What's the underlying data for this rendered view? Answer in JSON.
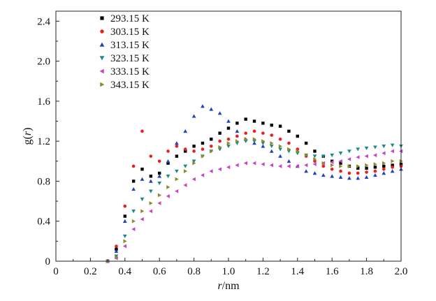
{
  "chart_data": {
    "type": "scatter",
    "title": "",
    "xlabel_italic": "r",
    "xlabel_unit": "/nm",
    "ylabel_main": "g(",
    "ylabel_var": "r",
    "ylabel_end": ")",
    "xlim": [
      0,
      2.0
    ],
    "ylim": [
      0,
      2.5
    ],
    "x_ticks": [
      0,
      0.2,
      0.4,
      0.6,
      0.8,
      1.0,
      1.2,
      1.4,
      1.6,
      1.8,
      2.0
    ],
    "x_tick_labels": [
      "0",
      "0.2",
      "0.4",
      "0.6",
      "0.8",
      "1.0",
      "1.2",
      "1.4",
      "1.6",
      "1.8",
      "2.0"
    ],
    "y_ticks": [
      0,
      0.4,
      0.8,
      1.2,
      1.6,
      2.0,
      2.4
    ],
    "y_tick_labels": [
      "0",
      "0.4",
      "0.8",
      "1.2",
      "1.6",
      "2.0",
      "2.4"
    ],
    "grid": false,
    "legend_position": "top-left",
    "series": [
      {
        "name": "293.15 K",
        "marker": "square",
        "color": "#000000",
        "x": [
          0.3,
          0.35,
          0.4,
          0.45,
          0.5,
          0.55,
          0.6,
          0.65,
          0.7,
          0.75,
          0.8,
          0.85,
          0.9,
          0.95,
          1.0,
          1.05,
          1.1,
          1.15,
          1.2,
          1.25,
          1.3,
          1.35,
          1.4,
          1.45,
          1.5,
          1.55,
          1.6,
          1.65,
          1.7,
          1.75,
          1.8,
          1.85,
          1.9,
          1.95,
          2.0
        ],
        "y": [
          0.0,
          0.12,
          0.45,
          0.8,
          0.92,
          0.85,
          0.88,
          0.98,
          1.05,
          1.1,
          1.15,
          1.18,
          1.22,
          1.28,
          1.33,
          1.38,
          1.42,
          1.4,
          1.38,
          1.36,
          1.35,
          1.3,
          1.25,
          1.18,
          1.1,
          1.05,
          1.0,
          0.98,
          0.95,
          0.93,
          0.93,
          0.94,
          0.95,
          0.96,
          0.97
        ]
      },
      {
        "name": "303.15 K",
        "marker": "circle",
        "color": "#e8201e",
        "x": [
          0.3,
          0.35,
          0.4,
          0.45,
          0.5,
          0.55,
          0.6,
          0.65,
          0.7,
          0.75,
          0.8,
          0.85,
          0.9,
          0.95,
          1.0,
          1.05,
          1.1,
          1.15,
          1.2,
          1.25,
          1.3,
          1.35,
          1.4,
          1.45,
          1.5,
          1.55,
          1.6,
          1.65,
          1.7,
          1.75,
          1.8,
          1.85,
          1.9,
          1.95,
          2.0
        ],
        "y": [
          0.0,
          0.15,
          0.55,
          0.95,
          1.3,
          1.05,
          1.0,
          1.1,
          1.15,
          1.12,
          1.1,
          1.12,
          1.15,
          1.2,
          1.22,
          1.25,
          1.28,
          1.3,
          1.28,
          1.26,
          1.22,
          1.18,
          1.12,
          1.05,
          1.0,
          0.95,
          0.92,
          0.9,
          0.88,
          0.88,
          0.89,
          0.9,
          0.92,
          0.94,
          0.95
        ]
      },
      {
        "name": "313.15 K",
        "marker": "triangle-up",
        "color": "#1f43b8",
        "x": [
          0.3,
          0.35,
          0.4,
          0.45,
          0.5,
          0.55,
          0.6,
          0.65,
          0.7,
          0.75,
          0.8,
          0.85,
          0.9,
          0.95,
          1.0,
          1.05,
          1.1,
          1.15,
          1.2,
          1.25,
          1.3,
          1.35,
          1.4,
          1.45,
          1.5,
          1.55,
          1.6,
          1.65,
          1.7,
          1.75,
          1.8,
          1.85,
          1.9,
          1.95,
          2.0
        ],
        "y": [
          0.0,
          0.1,
          0.4,
          0.72,
          0.82,
          0.8,
          0.85,
          1.0,
          1.18,
          1.3,
          1.45,
          1.55,
          1.52,
          1.48,
          1.4,
          1.3,
          1.22,
          1.18,
          1.15,
          1.1,
          1.05,
          1.0,
          0.95,
          0.9,
          0.88,
          0.86,
          0.85,
          0.84,
          0.83,
          0.83,
          0.84,
          0.86,
          0.88,
          0.9,
          0.92
        ]
      },
      {
        "name": "323.15 K",
        "marker": "triangle-down",
        "color": "#1b8a86",
        "x": [
          0.3,
          0.35,
          0.4,
          0.45,
          0.5,
          0.55,
          0.6,
          0.65,
          0.7,
          0.75,
          0.8,
          0.85,
          0.9,
          0.95,
          1.0,
          1.05,
          1.1,
          1.15,
          1.2,
          1.25,
          1.3,
          1.35,
          1.4,
          1.45,
          1.5,
          1.55,
          1.6,
          1.65,
          1.7,
          1.75,
          1.8,
          1.85,
          1.9,
          1.95,
          2.0
        ],
        "y": [
          0.0,
          0.05,
          0.25,
          0.5,
          0.62,
          0.7,
          0.78,
          0.85,
          0.9,
          0.95,
          1.0,
          1.05,
          1.1,
          1.12,
          1.15,
          1.18,
          1.2,
          1.2,
          1.18,
          1.15,
          1.12,
          1.1,
          1.08,
          1.06,
          1.05,
          1.05,
          1.06,
          1.08,
          1.1,
          1.12,
          1.13,
          1.14,
          1.15,
          1.16,
          1.15
        ]
      },
      {
        "name": "333.15 K",
        "marker": "triangle-left",
        "color": "#c844c4",
        "x": [
          0.3,
          0.35,
          0.4,
          0.45,
          0.5,
          0.55,
          0.6,
          0.65,
          0.7,
          0.75,
          0.8,
          0.85,
          0.9,
          0.95,
          1.0,
          1.05,
          1.1,
          1.15,
          1.2,
          1.25,
          1.3,
          1.35,
          1.4,
          1.45,
          1.5,
          1.55,
          1.6,
          1.65,
          1.7,
          1.75,
          1.8,
          1.85,
          1.9,
          1.95,
          2.0
        ],
        "y": [
          0.0,
          0.03,
          0.15,
          0.32,
          0.42,
          0.5,
          0.58,
          0.65,
          0.7,
          0.76,
          0.82,
          0.86,
          0.9,
          0.92,
          0.94,
          0.96,
          0.98,
          0.98,
          0.97,
          0.96,
          0.95,
          0.95,
          0.95,
          0.96,
          0.97,
          0.98,
          0.99,
          1.0,
          1.02,
          1.04,
          1.05,
          1.06,
          1.08,
          1.1,
          1.1
        ]
      },
      {
        "name": "343.15 K",
        "marker": "triangle-right",
        "color": "#8e8a2c",
        "x": [
          0.3,
          0.35,
          0.4,
          0.45,
          0.5,
          0.55,
          0.6,
          0.65,
          0.7,
          0.75,
          0.8,
          0.85,
          0.9,
          0.95,
          1.0,
          1.05,
          1.1,
          1.15,
          1.2,
          1.25,
          1.3,
          1.35,
          1.4,
          1.45,
          1.5,
          1.55,
          1.6,
          1.65,
          1.7,
          1.75,
          1.8,
          1.85,
          1.9,
          1.95,
          2.0
        ],
        "y": [
          0.0,
          0.04,
          0.2,
          0.4,
          0.5,
          0.58,
          0.66,
          0.74,
          0.82,
          0.9,
          0.98,
          1.05,
          1.1,
          1.14,
          1.18,
          1.2,
          1.22,
          1.22,
          1.2,
          1.18,
          1.15,
          1.12,
          1.1,
          1.06,
          1.02,
          0.98,
          0.96,
          0.95,
          0.95,
          0.95,
          0.96,
          0.97,
          0.98,
          1.0,
          1.0
        ]
      }
    ]
  }
}
